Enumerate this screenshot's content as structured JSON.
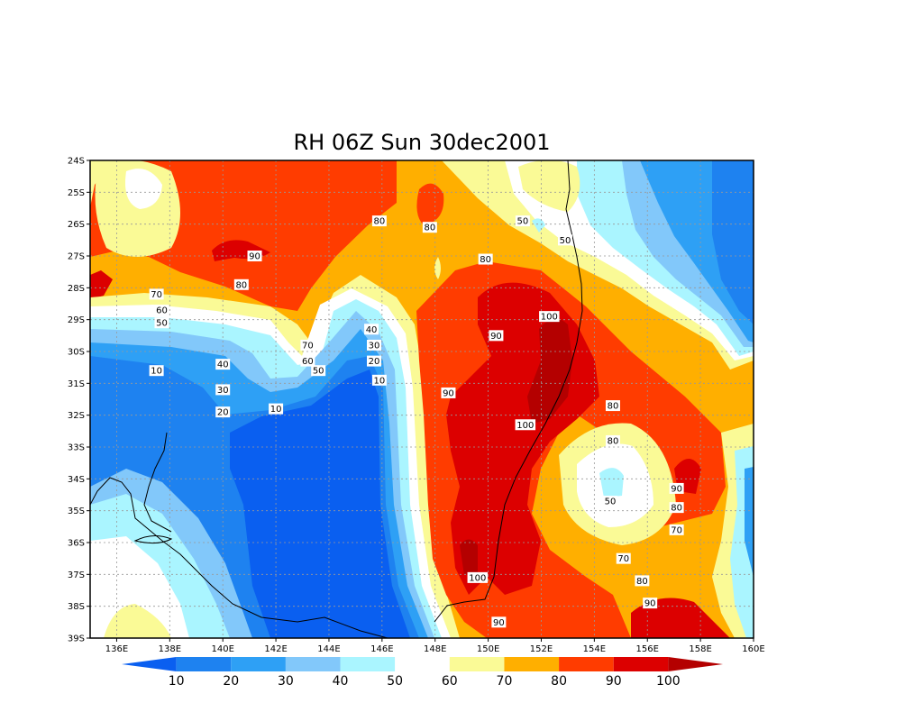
{
  "title": "RH 06Z Sun 30dec2001",
  "map": {
    "lon_range": [
      135,
      160
    ],
    "lat_range": [
      -39,
      -24
    ],
    "lon_ticks": [
      "136E",
      "138E",
      "140E",
      "142E",
      "144E",
      "146E",
      "148E",
      "150E",
      "152E",
      "154E",
      "156E",
      "158E",
      "160E"
    ],
    "lat_ticks": [
      "24S",
      "25S",
      "26S",
      "27S",
      "28S",
      "29S",
      "30S",
      "31S",
      "32S",
      "33S",
      "34S",
      "35S",
      "36S",
      "37S",
      "38S",
      "39S"
    ],
    "contour_labels": [
      {
        "text": "80",
        "lon": 145.9,
        "lat": -25.9
      },
      {
        "text": "80",
        "lon": 147.8,
        "lat": -26.1
      },
      {
        "text": "90",
        "lon": 141.2,
        "lat": -27.0
      },
      {
        "text": "80",
        "lon": 140.7,
        "lat": -27.9
      },
      {
        "text": "80",
        "lon": 149.9,
        "lat": -27.1
      },
      {
        "text": "70",
        "lon": 137.5,
        "lat": -28.2
      },
      {
        "text": "60",
        "lon": 137.7,
        "lat": -28.7
      },
      {
        "text": "50",
        "lon": 137.7,
        "lat": -29.1
      },
      {
        "text": "50",
        "lon": 151.3,
        "lat": -25.9
      },
      {
        "text": "50",
        "lon": 152.9,
        "lat": -26.5
      },
      {
        "text": "100",
        "lon": 152.3,
        "lat": -28.9
      },
      {
        "text": "90",
        "lon": 150.3,
        "lat": -29.5
      },
      {
        "text": "40",
        "lon": 145.6,
        "lat": -29.3
      },
      {
        "text": "30",
        "lon": 145.7,
        "lat": -29.8
      },
      {
        "text": "70",
        "lon": 143.2,
        "lat": -29.8
      },
      {
        "text": "60",
        "lon": 143.2,
        "lat": -30.3
      },
      {
        "text": "50",
        "lon": 143.6,
        "lat": -30.6
      },
      {
        "text": "20",
        "lon": 145.7,
        "lat": -30.3
      },
      {
        "text": "10",
        "lon": 145.9,
        "lat": -30.9
      },
      {
        "text": "10",
        "lon": 137.5,
        "lat": -30.6
      },
      {
        "text": "40",
        "lon": 140.0,
        "lat": -30.4
      },
      {
        "text": "30",
        "lon": 140.0,
        "lat": -31.2
      },
      {
        "text": "20",
        "lon": 140.0,
        "lat": -31.9
      },
      {
        "text": "10",
        "lon": 142.0,
        "lat": -31.8
      },
      {
        "text": "90",
        "lon": 148.5,
        "lat": -31.3
      },
      {
        "text": "100",
        "lon": 151.4,
        "lat": -32.3
      },
      {
        "text": "80",
        "lon": 154.7,
        "lat": -31.7
      },
      {
        "text": "80",
        "lon": 154.7,
        "lat": -32.8
      },
      {
        "text": "50",
        "lon": 154.6,
        "lat": -34.7
      },
      {
        "text": "90",
        "lon": 157.1,
        "lat": -34.3
      },
      {
        "text": "80",
        "lon": 157.1,
        "lat": -34.9
      },
      {
        "text": "70",
        "lon": 157.1,
        "lat": -35.6
      },
      {
        "text": "70",
        "lon": 155.1,
        "lat": -36.5
      },
      {
        "text": "80",
        "lon": 155.8,
        "lat": -37.2
      },
      {
        "text": "90",
        "lon": 156.1,
        "lat": -37.9
      },
      {
        "text": "100",
        "lon": 149.6,
        "lat": -37.1
      },
      {
        "text": "90",
        "lon": 150.4,
        "lat": -38.5
      }
    ]
  },
  "colorbar": {
    "labels": [
      "10",
      "20",
      "30",
      "40",
      "50",
      "60",
      "70",
      "80",
      "90",
      "100"
    ],
    "colors": [
      "#0a5ff0",
      "#1e82f0",
      "#2ea0f5",
      "#82c8fa",
      "#aaf5ff",
      "#ffffff",
      "#fafa96",
      "#ffaf00",
      "#ff3c00",
      "#dc0000",
      "#b40000"
    ]
  },
  "colors": {
    "lvl_lt10": "#0a5ff0",
    "lvl_10_20": "#1e82f0",
    "lvl_20_30": "#2ea0f5",
    "lvl_30_40": "#82c8fa",
    "lvl_40_50": "#aaf5ff",
    "lvl_50_60": "#ffffff",
    "lvl_60_70": "#fafa96",
    "lvl_70_80": "#ffaf00",
    "lvl_80_90": "#ff3c00",
    "lvl_90_100": "#dc0000",
    "lvl_gt100": "#b40000"
  }
}
